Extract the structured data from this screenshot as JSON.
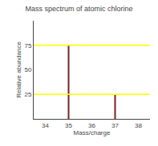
{
  "chart_data": {
    "type": "bar",
    "title": "Mass spectrum of atomic chlorine",
    "xlabel": "Mass/charge",
    "ylabel": "Relative abundance",
    "x": [
      35,
      37
    ],
    "values": [
      75,
      25
    ],
    "color": "#7a2525",
    "xlim": [
      33.5,
      38.5
    ],
    "ylim": [
      0,
      100
    ],
    "xticks": [
      34,
      35,
      36,
      37,
      38
    ],
    "yticks": [
      25,
      50,
      75
    ],
    "grid": false,
    "hlines": [
      {
        "y": 75,
        "color": "#ffff00"
      },
      {
        "y": 25,
        "color": "#ffff00"
      }
    ]
  }
}
